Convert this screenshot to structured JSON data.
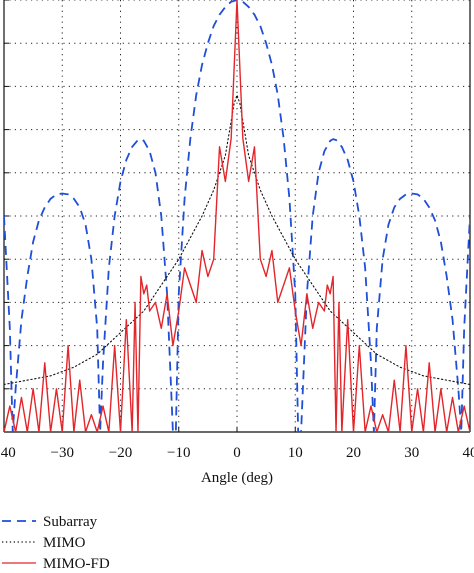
{
  "chart_data": {
    "type": "line",
    "title": "",
    "xlabel": "Angle (deg)",
    "ylabel": "",
    "xlim": [
      -40,
      40
    ],
    "ylim": [
      -50,
      0
    ],
    "x_ticks": [
      -40,
      -30,
      -20,
      -10,
      0,
      10,
      20,
      30,
      40
    ],
    "x_tick_labels": [
      "−40",
      "−30",
      "−20",
      "−10",
      "0",
      "10",
      "20",
      "30",
      "40"
    ],
    "y_grid": [
      -45,
      -40,
      -35,
      -30,
      -25,
      -20,
      -15,
      -10,
      -5,
      0
    ],
    "grid": true,
    "legend_position": "bottom-left",
    "series": [
      {
        "name": "Subarray",
        "color": "#1f4fd6",
        "style": "dashed",
        "x": [
          -40,
          -39,
          -38.5,
          -38,
          -37,
          -36,
          -35,
          -34,
          -33,
          -32,
          -31,
          -30,
          -29,
          -28,
          -27,
          -26,
          -25,
          -24,
          -23.5,
          -23,
          -22,
          -21,
          -20,
          -19,
          -18,
          -17,
          -16.5,
          -16,
          -15,
          -14,
          -13,
          -12,
          -11,
          -10.5,
          -10,
          -9,
          -8,
          -7,
          -6,
          -5,
          -4,
          -3,
          -2,
          -1,
          0,
          1,
          2,
          3,
          4,
          5,
          6,
          7,
          8,
          9,
          10,
          10.5,
          11,
          12,
          13,
          14,
          15,
          16,
          16.5,
          17,
          18,
          19,
          20,
          21,
          22,
          23,
          23.5,
          24,
          25,
          26,
          27,
          28,
          29,
          30,
          31,
          32,
          33,
          34,
          35,
          36,
          37,
          38,
          38.5,
          39,
          40
        ],
        "y": [
          -25,
          -38,
          -50,
          -45,
          -37,
          -32,
          -28,
          -25.5,
          -24,
          -23,
          -22.5,
          -22.4,
          -22.5,
          -23,
          -24,
          -26,
          -30,
          -38,
          -50,
          -42,
          -31,
          -25,
          -21,
          -18.5,
          -17,
          -16.2,
          -16.1,
          -16.3,
          -17.5,
          -20,
          -25,
          -34,
          -50,
          -50,
          -34,
          -23,
          -16,
          -11,
          -7.5,
          -5,
          -3,
          -1.7,
          -0.8,
          -0.2,
          0,
          -0.2,
          -0.8,
          -1.7,
          -3,
          -5,
          -7.5,
          -11,
          -16,
          -23,
          -34,
          -50,
          -50,
          -34,
          -25,
          -20,
          -17.5,
          -16.3,
          -16.1,
          -16.2,
          -17,
          -18.5,
          -21,
          -25,
          -31,
          -42,
          -50,
          -38,
          -30,
          -26,
          -24,
          -23,
          -22.5,
          -22.4,
          -22.5,
          -23,
          -24,
          -25.5,
          -28,
          -32,
          -37,
          -45,
          -50,
          -38,
          -25
        ]
      },
      {
        "name": "MIMO",
        "color": "#111111",
        "style": "dotted",
        "x": [
          -40,
          -36,
          -32,
          -28,
          -24,
          -20,
          -16,
          -13,
          -10,
          -8,
          -6,
          -4,
          -3,
          -2,
          -1.5,
          -1,
          -0.5,
          0,
          0.5,
          1,
          1.5,
          2,
          3,
          4,
          6,
          8,
          10,
          13,
          16,
          20,
          24,
          28,
          32,
          36,
          40
        ],
        "y": [
          -44.5,
          -44,
          -43.5,
          -42.5,
          -41,
          -38.5,
          -36,
          -33,
          -30,
          -27.5,
          -25,
          -22,
          -20,
          -18,
          -16,
          -14,
          -12,
          -11,
          -12,
          -14,
          -16,
          -18,
          -20,
          -22,
          -25,
          -27.5,
          -30,
          -33,
          -36,
          -38.5,
          -41,
          -42.5,
          -43.5,
          -44,
          -44.5
        ]
      },
      {
        "name": "MIMO-FD",
        "color": "#e3262b",
        "style": "solid",
        "x": [
          -40,
          -39,
          -38,
          -37,
          -36,
          -35,
          -34,
          -33,
          -32,
          -31,
          -30,
          -29,
          -28,
          -27,
          -26,
          -25,
          -24,
          -23,
          -22,
          -21,
          -20,
          -19,
          -18,
          -17.5,
          -17,
          -16.5,
          -16,
          -15.5,
          -15,
          -14,
          -13,
          -12,
          -11,
          -10,
          -9,
          -8,
          -7,
          -6,
          -5,
          -4,
          -3,
          -2,
          -1,
          0,
          1,
          2,
          3,
          4,
          5,
          6,
          7,
          8,
          9,
          10,
          11,
          12,
          13,
          14,
          15,
          15.5,
          16,
          16.5,
          17,
          17.5,
          18,
          19,
          20,
          21,
          22,
          23,
          24,
          25,
          26,
          27,
          28,
          29,
          30,
          31,
          32,
          33,
          34,
          35,
          36,
          37,
          38,
          39,
          40
        ],
        "y": [
          -50,
          -47,
          -50,
          -46,
          -50,
          -45,
          -50,
          -42,
          -50,
          -45,
          -50,
          -40,
          -50,
          -44,
          -50,
          -48,
          -50,
          -47,
          -50,
          -40,
          -50,
          -37,
          -50,
          -35,
          -50,
          -32,
          -34,
          -33,
          -36,
          -35,
          -38,
          -34,
          -40,
          -36,
          -31,
          -33,
          -35,
          -29,
          -32,
          -30,
          -17,
          -21,
          -16,
          0,
          -16,
          -21,
          -17,
          -30,
          -32,
          -29,
          -35,
          -33,
          -31,
          -36,
          -40,
          -34,
          -38,
          -35,
          -36,
          -33,
          -34,
          -32,
          -50,
          -35,
          -50,
          -37,
          -50,
          -40,
          -50,
          -47,
          -50,
          -48,
          -50,
          -44,
          -50,
          -40,
          -50,
          -45,
          -50,
          -42,
          -50,
          -45,
          -50,
          -46,
          -50,
          -47,
          -50
        ]
      }
    ]
  },
  "legend": {
    "items": [
      {
        "label": "Subarray",
        "color": "#1f4fd6",
        "style": "dashed"
      },
      {
        "label": "MIMO",
        "color": "#111111",
        "style": "dotted"
      },
      {
        "label": "MIMO-FD",
        "color": "#e3262b",
        "style": "solid"
      }
    ]
  }
}
